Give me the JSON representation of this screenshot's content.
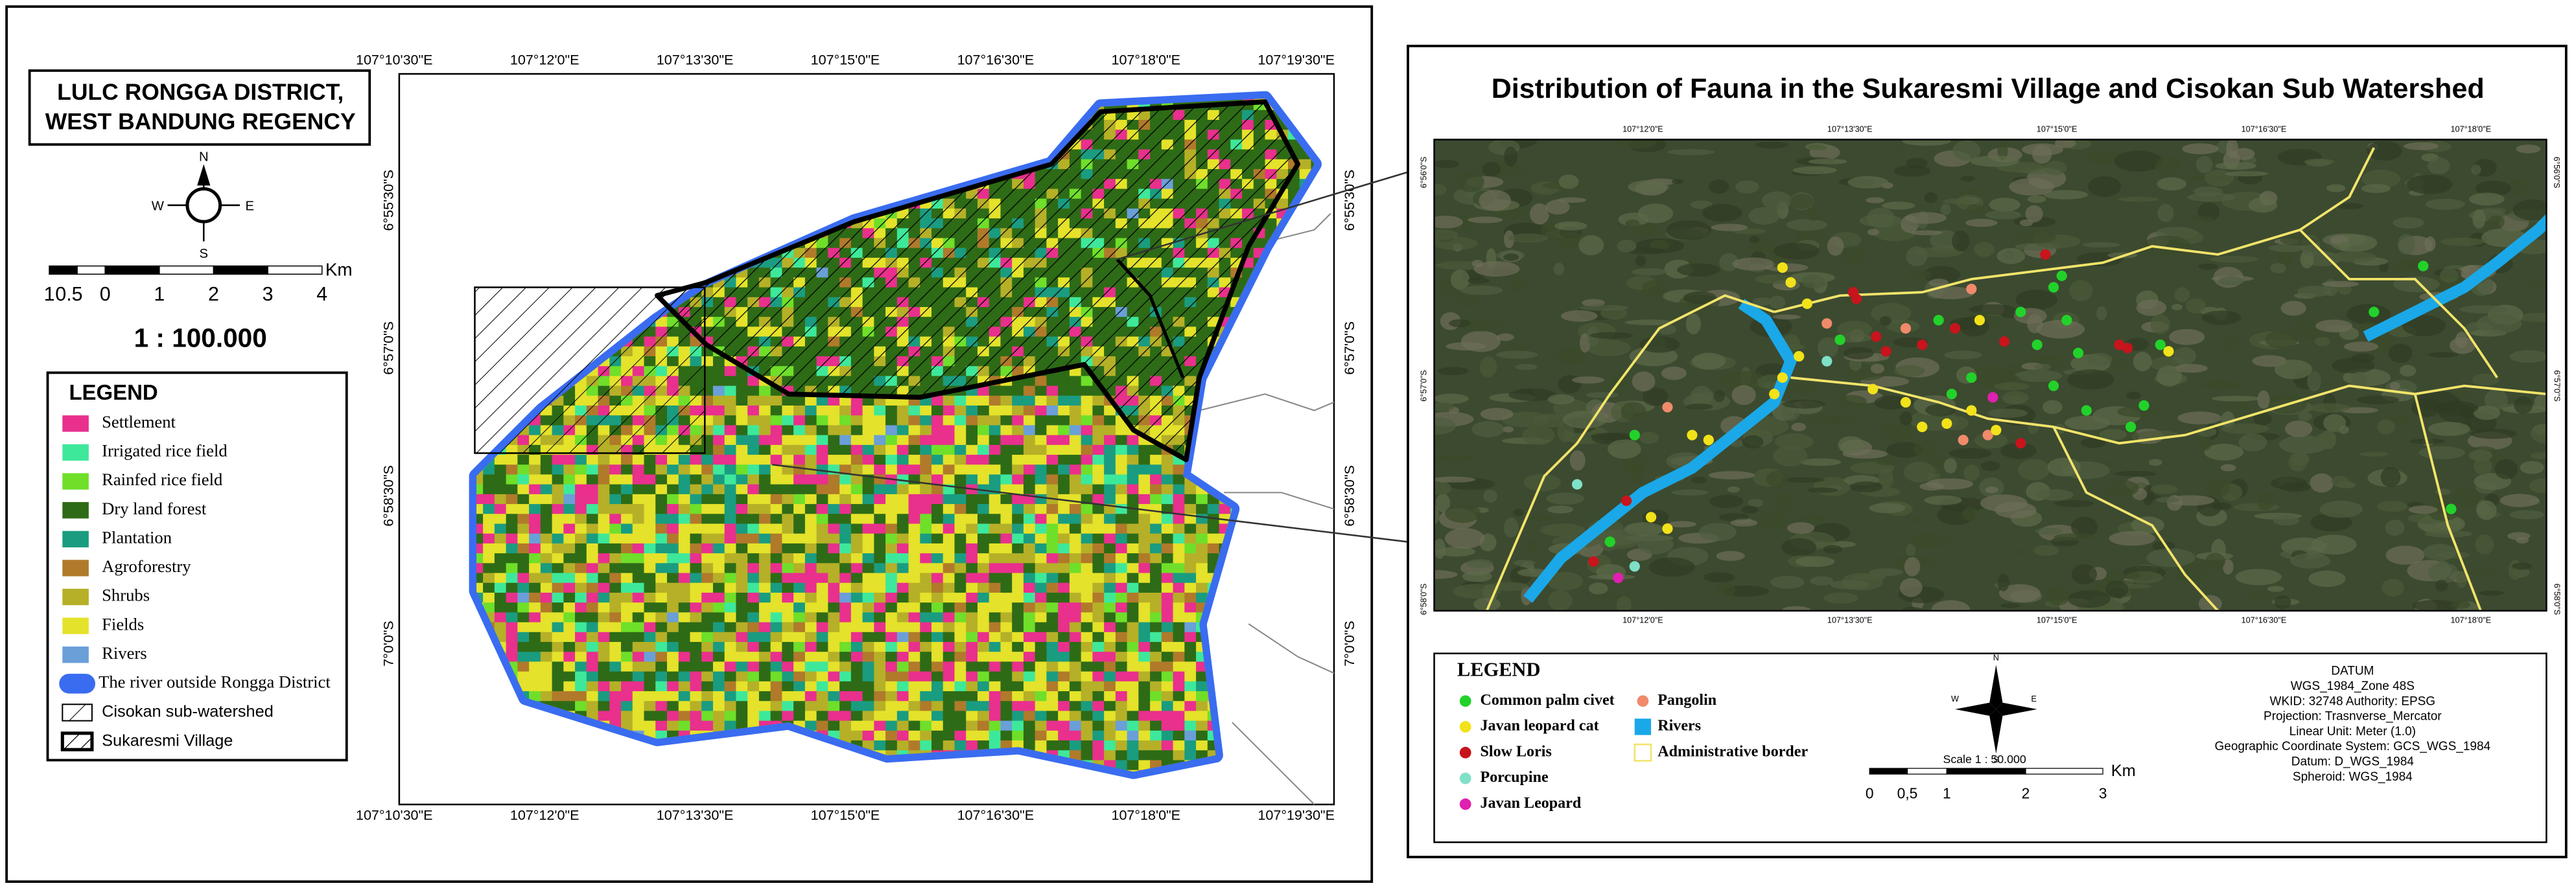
{
  "left_map": {
    "title": [
      "LULC RONGGA DISTRICT,",
      "WEST BANDUNG REGENCY"
    ],
    "compass": {
      "n": "N",
      "s": "S",
      "e": "E",
      "w": "W"
    },
    "scale_labels": [
      "1",
      "0.5",
      "0",
      "1",
      "2",
      "3",
      "4"
    ],
    "scale_unit": "Km",
    "ratio": "1 : 100.000",
    "legend": {
      "title": "LEGEND",
      "items": [
        {
          "label": "Settlement",
          "color": "#e8308c"
        },
        {
          "label": "Irrigated rice field",
          "color": "#3ee89a"
        },
        {
          "label": "Rainfed rice field",
          "color": "#6fdf2a"
        },
        {
          "label": "Dry land forest",
          "color": "#2e6b16"
        },
        {
          "label": "Plantation",
          "color": "#1a9c80"
        },
        {
          "label": "Agroforestry",
          "color": "#b07a2a"
        },
        {
          "label": "Shrubs",
          "color": "#b5b027"
        },
        {
          "label": "Fields",
          "color": "#e4e22a"
        },
        {
          "label": "Rivers",
          "color": "#6a9fd8"
        },
        {
          "label": "The river outside Rongga District",
          "color": "#3a6cf0"
        },
        {
          "label": "Cisokan sub-watershed",
          "symbol": "hatch"
        },
        {
          "label": "Sukaresmi Village",
          "symbol": "hatch-bold"
        }
      ]
    },
    "lon_labels": [
      "107°10'30\"E",
      "107°12'0\"E",
      "107°13'30\"E",
      "107°15'0\"E",
      "107°16'30\"E",
      "107°18'0\"E",
      "107°19'30\"E"
    ],
    "lat_labels": [
      "6°55'30\"S",
      "6°57'0\"S",
      "6°58'30\"S",
      "7°0'0\"S"
    ]
  },
  "right_map": {
    "title": "Distribution of Fauna in the Sukaresmi Village and Cisokan Sub Watershed",
    "lon_labels": [
      "107°12'0\"E",
      "107°13'30\"E",
      "107°15'0\"E",
      "107°16'30\"E",
      "107°18'0\"E"
    ],
    "lat_labels": [
      "6°56'0\"S",
      "6°57'0\"S",
      "6°58'0\"S"
    ],
    "legend": {
      "title": "LEGEND",
      "items": [
        {
          "label": "Common palm civet",
          "color": "#22d22a",
          "symbol": "circle"
        },
        {
          "label": "Javan leopard cat",
          "color": "#f2e21a",
          "symbol": "circle"
        },
        {
          "label": "Slow Loris",
          "color": "#c8141c",
          "symbol": "circle"
        },
        {
          "label": "Porcupine",
          "color": "#7fe0c8",
          "symbol": "circle"
        },
        {
          "label": "Javan Leopard",
          "color": "#e020b0",
          "symbol": "circle"
        },
        {
          "label": "Pangolin",
          "color": "#f08a6a",
          "symbol": "circle"
        },
        {
          "label": "Rivers",
          "color": "#1aa8e8",
          "symbol": "square"
        },
        {
          "label": "Administrative border",
          "color": "#f2e46a",
          "symbol": "outline"
        }
      ]
    },
    "compass": {
      "n": "N",
      "s": "S",
      "e": "E",
      "w": "W"
    },
    "scale": "Scale 1 : 50.000",
    "scale_labels": [
      "0",
      "0,5",
      "1",
      "2",
      "3"
    ],
    "scale_unit": "Km",
    "datum": [
      "DATUM",
      "WGS_1984_Zone 48S",
      "WKID: 32748 Authority: EPSG",
      "Projection: Trasnverse_Mercator",
      "Linear Unit: Meter (1.0)",
      "Geographic Coordinate System: GCS_WGS_1984",
      "Datum: D_WGS_1984",
      "Spheroid: WGS_1984"
    ]
  }
}
